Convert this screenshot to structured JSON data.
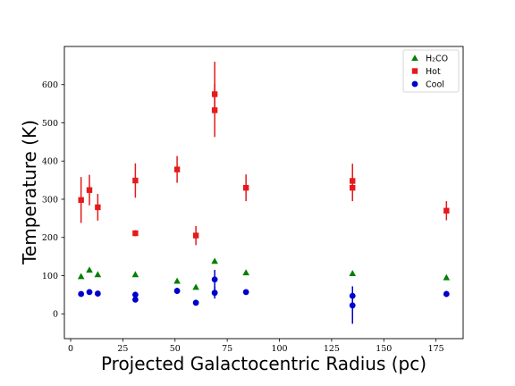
{
  "chart_data": {
    "type": "scatter",
    "xlabel": "Projected Galactocentric Radius (pc)",
    "ylabel": "Temperature (K)",
    "xlim": [
      -3,
      188
    ],
    "ylim": [
      -65,
      700
    ],
    "xticks": [
      0,
      25,
      50,
      75,
      100,
      125,
      150,
      175
    ],
    "yticks": [
      0,
      100,
      200,
      300,
      400,
      500,
      600
    ],
    "legend_position": "top-right",
    "series": [
      {
        "name": "H₂CO",
        "marker": "triangle",
        "color": "#008000",
        "points": [
          {
            "x": 5,
            "y": 98
          },
          {
            "x": 9,
            "y": 115
          },
          {
            "x": 13,
            "y": 103
          },
          {
            "x": 31,
            "y": 103
          },
          {
            "x": 51,
            "y": 86
          },
          {
            "x": 60,
            "y": 70
          },
          {
            "x": 69,
            "y": 138
          },
          {
            "x": 84,
            "y": 108
          },
          {
            "x": 135,
            "y": 106
          },
          {
            "x": 180,
            "y": 95
          }
        ]
      },
      {
        "name": "Hot",
        "marker": "square",
        "color": "#e41a1c",
        "points": [
          {
            "x": 5,
            "y": 298,
            "yerr_low": 60,
            "yerr_high": 60
          },
          {
            "x": 9,
            "y": 324,
            "yerr_low": 40,
            "yerr_high": 40
          },
          {
            "x": 13,
            "y": 279,
            "yerr_low": 35,
            "yerr_high": 35
          },
          {
            "x": 31,
            "y": 349,
            "yerr_low": 45,
            "yerr_high": 45
          },
          {
            "x": 31,
            "y": 211,
            "yerr_low": 8,
            "yerr_high": 8
          },
          {
            "x": 51,
            "y": 378,
            "yerr_low": 35,
            "yerr_high": 35
          },
          {
            "x": 60,
            "y": 205,
            "yerr_low": 25,
            "yerr_high": 25
          },
          {
            "x": 69,
            "y": 575,
            "yerr_low": 40,
            "yerr_high": 85
          },
          {
            "x": 69,
            "y": 533,
            "yerr_low": 70,
            "yerr_high": 70
          },
          {
            "x": 84,
            "y": 330,
            "yerr_low": 35,
            "yerr_high": 35
          },
          {
            "x": 135,
            "y": 348,
            "yerr_low": 45,
            "yerr_high": 45
          },
          {
            "x": 135,
            "y": 330,
            "yerr_low": 35,
            "yerr_high": 35
          },
          {
            "x": 180,
            "y": 270,
            "yerr_low": 25,
            "yerr_high": 25
          }
        ]
      },
      {
        "name": "Cool",
        "marker": "circle",
        "color": "#0000cd",
        "points": [
          {
            "x": 5,
            "y": 52
          },
          {
            "x": 9,
            "y": 57
          },
          {
            "x": 13,
            "y": 53
          },
          {
            "x": 31,
            "y": 50,
            "yerr_low": 8,
            "yerr_high": 8
          },
          {
            "x": 31,
            "y": 37
          },
          {
            "x": 51,
            "y": 60,
            "yerr_low": 8,
            "yerr_high": 8
          },
          {
            "x": 60,
            "y": 29
          },
          {
            "x": 69,
            "y": 90,
            "yerr_low": 25,
            "yerr_high": 25
          },
          {
            "x": 69,
            "y": 55,
            "yerr_low": 15,
            "yerr_high": 15
          },
          {
            "x": 84,
            "y": 57
          },
          {
            "x": 135,
            "y": 47,
            "yerr_low": 25,
            "yerr_high": 25
          },
          {
            "x": 135,
            "y": 22,
            "yerr_low": 48,
            "yerr_high": 48
          },
          {
            "x": 180,
            "y": 52,
            "yerr_low": 8,
            "yerr_high": 8
          }
        ]
      }
    ]
  }
}
